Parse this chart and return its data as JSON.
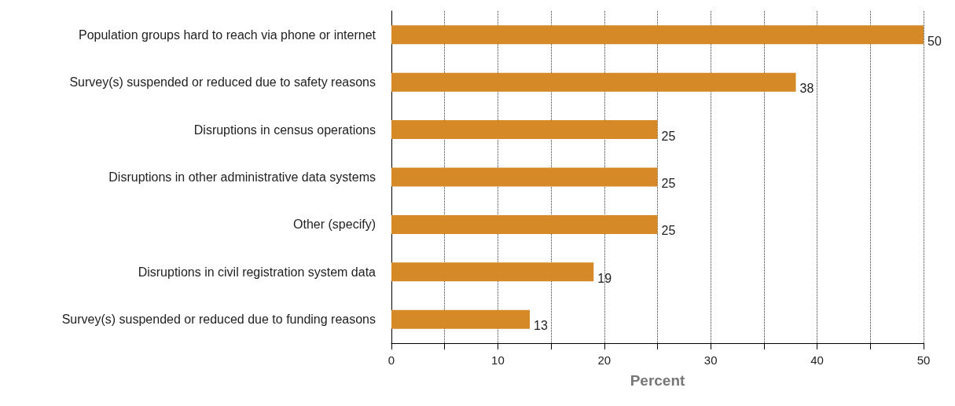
{
  "chart_data": {
    "type": "bar",
    "orientation": "horizontal",
    "xlabel": "Percent",
    "categories": [
      "Population groups hard to reach via phone or internet",
      "Survey(s) suspended or reduced due to safety reasons",
      "Disruptions in census operations",
      "Disruptions in other administrative data systems",
      "Other (specify)",
      "Disruptions in civil registration system data",
      "Survey(s) suspended or reduced due to funding reasons"
    ],
    "values": [
      50,
      38,
      25,
      25,
      25,
      19,
      13
    ],
    "color": "#d58a27",
    "xlim": [
      0,
      50
    ],
    "xticks": [
      0,
      {
        "value": 5,
        "label": null
      },
      10,
      {
        "value": 15,
        "label": null
      },
      20,
      {
        "value": 25,
        "label": null
      },
      30,
      {
        "value": 35,
        "label": null
      },
      40,
      {
        "value": 45,
        "label": null
      },
      50
    ],
    "grid": "x",
    "data_labels": true
  }
}
